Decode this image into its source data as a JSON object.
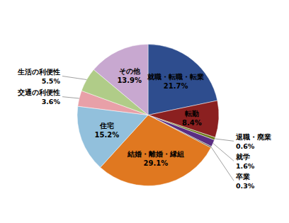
{
  "chart_data": {
    "type": "pie",
    "categories": [
      "就職・転職・転業",
      "転勤",
      "退職・廃業",
      "就学",
      "卒業",
      "結婚・離婚・縁組",
      "住宅",
      "交通の利便性",
      "生活の利便性",
      "その他"
    ],
    "values": [
      21.7,
      8.4,
      0.6,
      1.6,
      0.3,
      29.1,
      15.2,
      3.6,
      5.5,
      13.9
    ],
    "value_labels": [
      "21.7%",
      "8.4%",
      "0.6%",
      "1.6%",
      "0.3%",
      "29.1%",
      "15.2%",
      "3.6%",
      "5.5%",
      "13.9%"
    ],
    "colors": [
      "#2E4D8E",
      "#8B2020",
      "#6B7A1A",
      "#5A2D82",
      "#555555",
      "#E07820",
      "#92C0DC",
      "#E8A0A8",
      "#B0CC88",
      "#C8A8D0"
    ],
    "data_labels": true
  }
}
